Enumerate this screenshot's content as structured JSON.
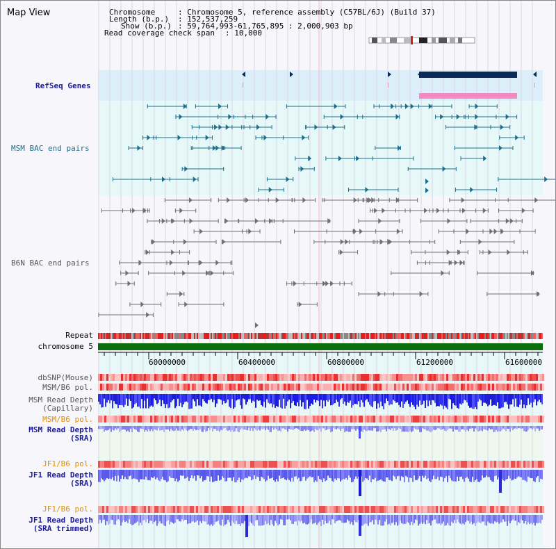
{
  "title": "Map View",
  "header": {
    "chromosome_key": "Chromosome",
    "chromosome_value": ": Chromosome 5, reference assembly (C57BL/6J) (Build 37)",
    "length_key": "Length (b.p.)",
    "length_value": ": 152,537,259",
    "show_key": "Show (b.p.)",
    "show_value": ": 59,764,993-61,765,895 : 2,000,903 bp",
    "span_key": "Read coverage check span",
    "span_value": ": 10,000"
  },
  "tracks": {
    "refseq": "RefSeq Genes",
    "msm_bac": "MSM BAC end pairs",
    "b6n_bac": "B6N BAC end pairs",
    "repeat": "Repeat",
    "chromosome": "chromosome 5",
    "dbsnp": "dbSNP(Mouse)",
    "msm_b6_pol_1": "MSM/B6 pol.",
    "msm_read_depth_cap_1": "MSM Read Depth",
    "msm_read_depth_cap_2": "(Capillary)",
    "msm_b6_pol_2": "MSM/B6 pol.",
    "msm_read_depth_sra_1": "MSM Read Depth",
    "msm_read_depth_sra_2": "(SRA)",
    "jf1_b6_pol_1": "JF1/B6 pol.",
    "jf1_read_depth_sra_1": "JF1 Read Depth",
    "jf1_read_depth_sra_2": "(SRA)",
    "jf1_b6_pol_2": "JF1/B6 pol.",
    "jf1_read_depth_trim_1": "JF1 Read Depth",
    "jf1_read_depth_trim_2": "(SRA trimmed)"
  },
  "ruler": {
    "ticks": [
      "60000000",
      "60400000",
      "60800000",
      "61200000",
      "61600000"
    ]
  },
  "colors": {
    "refseq_band": "#dceefa",
    "msm_band": "#e6f8f8",
    "gene_dark": "#0a2a5a",
    "gene_pink": "#f48ac0",
    "msm_glyph": "#1d6f8c",
    "b6n_glyph": "#707070",
    "chromosome": "#0a6e0a",
    "depth_blue": "#2a2ae0",
    "label_blue": "#1a1a9a",
    "label_orange": "#e09000",
    "label_teal": "#1d6f8c"
  }
}
